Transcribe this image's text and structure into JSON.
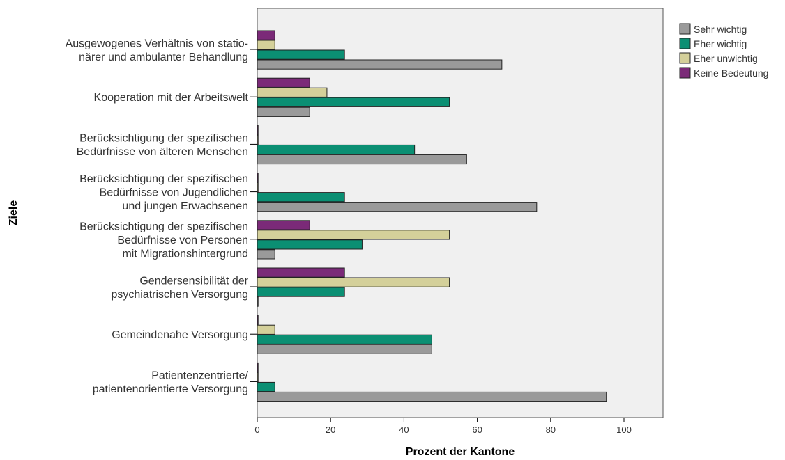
{
  "chart_data": {
    "type": "bar",
    "orientation": "horizontal",
    "xlabel": "Prozent der Kantone",
    "ylabel": "Ziele",
    "xlim": [
      0,
      110
    ],
    "xticks": [
      0,
      20,
      40,
      60,
      80,
      100
    ],
    "grid": false,
    "legend_position": "top-right",
    "categories": [
      [
        "Ausgewogenes Verhältnis von statio-",
        "närer und ambulanter Behandlung"
      ],
      [
        "Kooperation mit der Arbeitswelt"
      ],
      [
        "Berücksichtigung der spezifischen",
        "Bedürfnisse von älteren Menschen"
      ],
      [
        "Berücksichtigung der spezifischen",
        "Bedürfnisse von Jugendlichen",
        "und jungen Erwachsenen"
      ],
      [
        "Berücksichtigung der spezifischen",
        "Bedürfnisse von Personen",
        "mit Migrationshintergrund"
      ],
      [
        "Gendersensibilität der",
        "psychiatrischen Versorgung"
      ],
      [
        "Gemeindenahe Versorgung"
      ],
      [
        "Patientenzentrierte/",
        "patientenorientierte Versorgung"
      ]
    ],
    "series": [
      {
        "name": "Sehr wichtig",
        "color": "#9a9a9a",
        "values": [
          66.7,
          14.3,
          57.1,
          76.2,
          4.8,
          0,
          47.6,
          95.2
        ]
      },
      {
        "name": "Eher wichtig",
        "color": "#0b8f73",
        "values": [
          23.8,
          52.4,
          42.9,
          23.8,
          28.6,
          23.8,
          47.6,
          4.8
        ]
      },
      {
        "name": "Eher unwichtig",
        "color": "#d4d09a",
        "values": [
          4.8,
          19.0,
          0,
          0,
          52.4,
          52.4,
          4.8,
          0
        ]
      },
      {
        "name": "Keine Bedeutung",
        "color": "#7b2a78",
        "values": [
          4.8,
          14.3,
          0,
          0,
          14.3,
          23.8,
          0,
          0
        ]
      }
    ]
  }
}
